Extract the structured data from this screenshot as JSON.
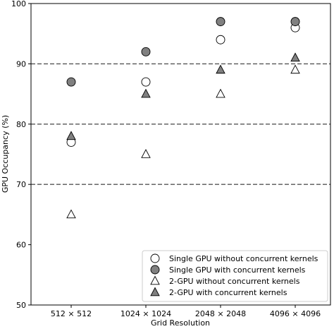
{
  "chart_data": {
    "type": "scatter",
    "xlabel": "Grid Resolution",
    "ylabel": "GPU Occupancy (%)",
    "categories": [
      "512 × 512",
      "1024 × 1024",
      "2048 × 2048",
      "4096 × 4096"
    ],
    "ylim": [
      50,
      100
    ],
    "yticks": [
      50,
      60,
      70,
      80,
      90,
      100
    ],
    "reference_lines": [
      70,
      80,
      90
    ],
    "grid": false,
    "legend_position": "lower-right",
    "series": [
      {
        "name": "Single GPU without concurrent kernels",
        "marker": "circle",
        "fill": "#ffffff",
        "values": [
          77,
          87,
          94,
          96
        ]
      },
      {
        "name": "Single GPU with concurrent kernels",
        "marker": "circle",
        "fill": "#808080",
        "values": [
          87,
          92,
          97,
          97
        ]
      },
      {
        "name": "2-GPU without concurrent kernels",
        "marker": "triangle",
        "fill": "#ffffff",
        "values": [
          65,
          75,
          85,
          89
        ]
      },
      {
        "name": "2-GPU with concurrent kernels",
        "marker": "triangle",
        "fill": "#808080",
        "values": [
          78,
          85,
          89,
          91
        ]
      }
    ]
  }
}
